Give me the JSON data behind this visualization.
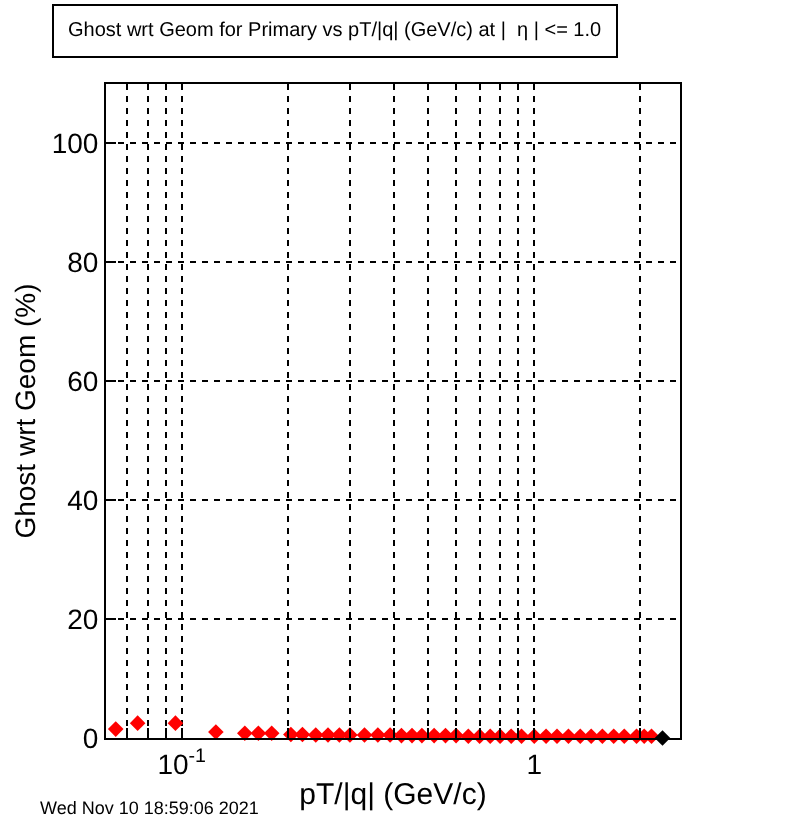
{
  "chart_data": {
    "type": "scatter",
    "title": "Ghost wrt Geom for Primary vs pT/|q| (GeV/c) at |  η | <= 1.0",
    "xlabel": "pT/|q| (GeV/c)",
    "ylabel": "Ghost wrt Geom (%)",
    "annotations": [
      "Wed Nov 10 18:59:06 2021"
    ],
    "log": "x",
    "grid": true,
    "marker": "diamond",
    "xlim": [
      0.061,
      2.59
    ],
    "ylim": [
      0,
      110
    ],
    "xticks": [
      {
        "value": 0.07,
        "label": null
      },
      {
        "value": 0.08,
        "label": null
      },
      {
        "value": 0.09,
        "label": null
      },
      {
        "value": 0.1,
        "label": "10$^{-1}$"
      },
      {
        "value": 0.2,
        "label": null
      },
      {
        "value": 0.3,
        "label": null
      },
      {
        "value": 0.4,
        "label": null
      },
      {
        "value": 0.5,
        "label": null
      },
      {
        "value": 0.6,
        "label": null
      },
      {
        "value": 0.7,
        "label": null
      },
      {
        "value": 0.8,
        "label": null
      },
      {
        "value": 0.9,
        "label": null
      },
      1,
      {
        "value": 2,
        "label": null
      }
    ],
    "yticks": [
      0,
      20,
      40,
      60,
      80,
      100
    ],
    "series": [
      {
        "color": "#ff0000",
        "x": [
          0.065,
          0.075,
          0.096,
          0.125,
          0.151,
          0.165,
          0.18,
          0.204,
          0.22,
          0.24,
          0.26,
          0.28,
          0.3,
          0.33,
          0.36,
          0.39,
          0.42,
          0.45,
          0.48,
          0.52,
          0.56,
          0.6,
          0.65,
          0.7,
          0.75,
          0.8,
          0.86,
          0.92,
          1.0,
          1.08,
          1.16,
          1.25,
          1.35,
          1.45,
          1.56,
          1.68,
          1.8,
          1.95,
          2.05,
          2.15
        ],
        "values": [
          1.5,
          2.5,
          2.5,
          1,
          0.8,
          0.8,
          0.8,
          0.6,
          0.6,
          0.5,
          0.5,
          0.5,
          0.5,
          0.5,
          0.5,
          0.5,
          0.4,
          0.4,
          0.4,
          0.4,
          0.4,
          0.4,
          0.3,
          0.3,
          0.3,
          0.3,
          0.3,
          0.3,
          0.3,
          0.3,
          0.3,
          0.3,
          0.3,
          0.3,
          0.3,
          0.3,
          0.3,
          0.3,
          0.3,
          0.3
        ]
      },
      {
        "color": "#000000",
        "x": [
          2.31
        ],
        "values": [
          0
        ]
      }
    ]
  }
}
